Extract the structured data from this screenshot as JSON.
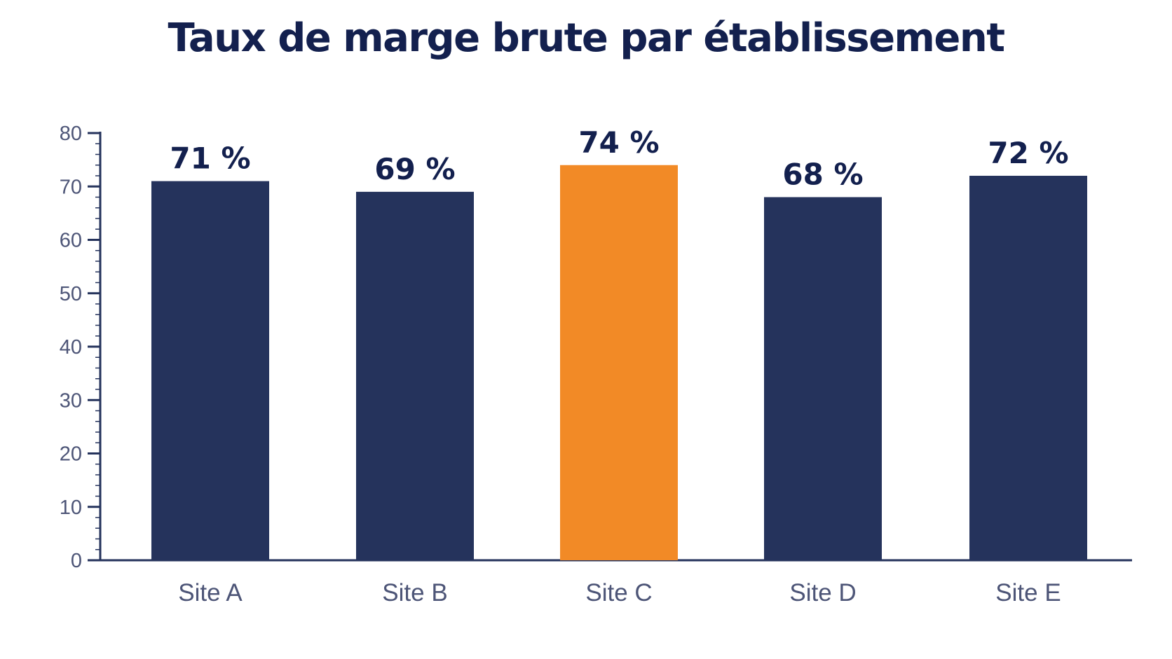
{
  "chart_data": {
    "type": "bar",
    "title": "Taux de marge brute par établissement",
    "xlabel": "",
    "ylabel": "",
    "categories": [
      "Site A",
      "Site B",
      "Site C",
      "Site D",
      "Site E"
    ],
    "values": [
      71,
      69,
      74,
      68,
      72
    ],
    "value_labels": [
      "71 %",
      "69 %",
      "74 %",
      "68 %",
      "72 %"
    ],
    "ylim": [
      0,
      80
    ],
    "yticks": [
      0,
      10,
      20,
      30,
      40,
      50,
      60,
      70,
      80
    ],
    "grid": false,
    "legend": "none",
    "highlight_index": 2,
    "colors": {
      "bar": "#25335c",
      "highlight": "#f28a26",
      "axis": "#25335c",
      "text": "#13204e"
    }
  }
}
